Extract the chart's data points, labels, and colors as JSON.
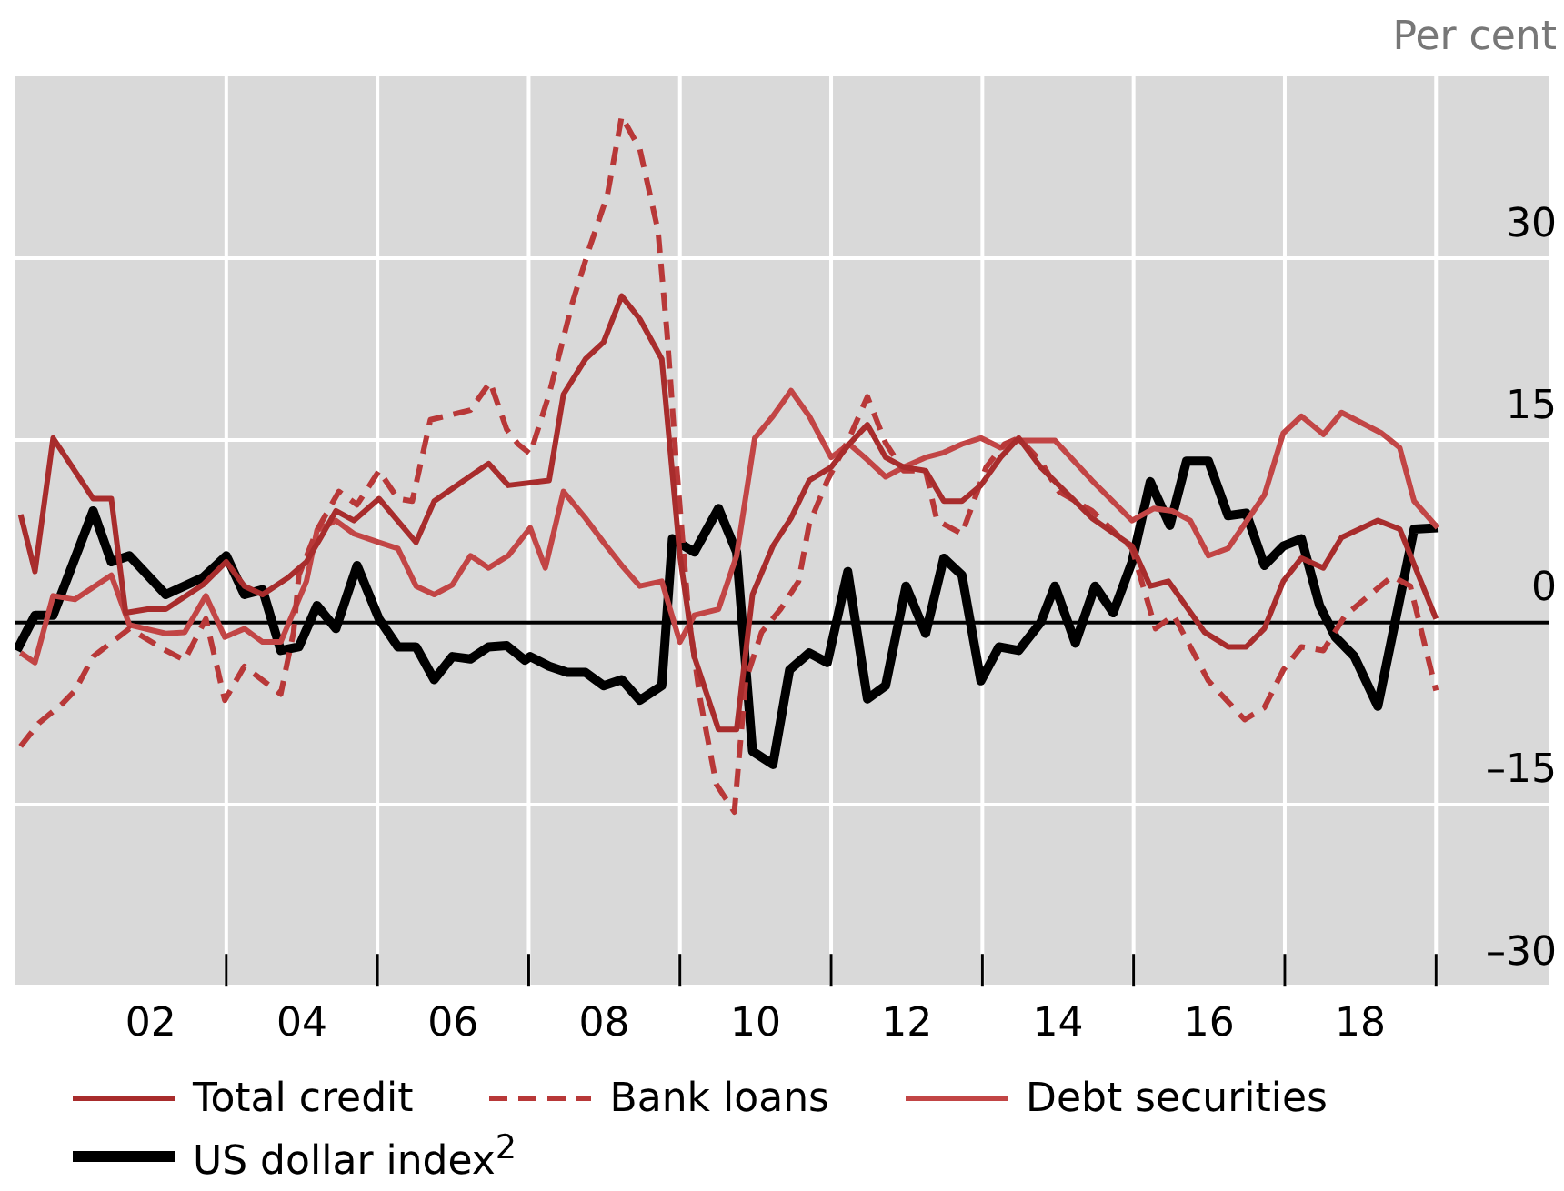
{
  "chart_data": {
    "type": "line",
    "ylabel": "Per cent",
    "xlim": [
      2000.2,
      2020.5
    ],
    "ylim": [
      -30,
      45
    ],
    "xticks": [
      {
        "value": 2002,
        "label": "02"
      },
      {
        "value": 2003,
        "label": null
      },
      {
        "value": 2004,
        "label": "04"
      },
      {
        "value": 2005,
        "label": null
      },
      {
        "value": 2006,
        "label": "06"
      },
      {
        "value": 2007,
        "label": null
      },
      {
        "value": 2008,
        "label": "08"
      },
      {
        "value": 2009,
        "label": null
      },
      {
        "value": 2010,
        "label": "10"
      },
      {
        "value": 2011,
        "label": null
      },
      {
        "value": 2012,
        "label": "12"
      },
      {
        "value": 2013,
        "label": null
      },
      {
        "value": 2014,
        "label": "14"
      },
      {
        "value": 2015,
        "label": null
      },
      {
        "value": 2016,
        "label": "16"
      },
      {
        "value": 2017,
        "label": null
      },
      {
        "value": 2018,
        "label": "18"
      },
      {
        "value": 2019,
        "label": null
      }
    ],
    "yticks": [
      {
        "value": -30,
        "label": "–30"
      },
      {
        "value": -15,
        "label": "–15"
      },
      0,
      15,
      30
    ],
    "grid": true,
    "legend": "bottom",
    "ref_lines": [
      {
        "axis": "y",
        "value": 0,
        "color": "#000000"
      }
    ],
    "series": [
      {
        "name": "Total credit",
        "color": "#a82c2c",
        "line_style": "solid",
        "x": [
          2000.28,
          2000.47,
          2000.71,
          2001.24,
          2001.48,
          2001.67,
          2001.96,
          2002.2,
          2002.69,
          2003.0,
          2003.24,
          2003.48,
          2003.82,
          2004.06,
          2004.25,
          2004.45,
          2004.69,
          2005.02,
          2005.51,
          2005.75,
          2006.47,
          2006.73,
          2007.27,
          2007.46,
          2007.75,
          2007.99,
          2008.23,
          2008.47,
          2008.76,
          2009.0,
          2009.19,
          2009.51,
          2009.75,
          2009.96,
          2010.23,
          2010.47,
          2010.71,
          2011.0,
          2011.24,
          2011.48,
          2011.72,
          2011.96,
          2012.25,
          2012.49,
          2012.73,
          2012.98,
          2013.24,
          2013.48,
          2013.77,
          2014.45,
          2014.98,
          2015.22,
          2015.46,
          2015.94,
          2016.25,
          2016.49,
          2016.73,
          2016.98,
          2017.22,
          2017.51,
          2017.75,
          2018.23,
          2018.52,
          2019.0
        ],
        "values": [
          8.9,
          4.2,
          15.2,
          10.2,
          10.2,
          0.8,
          1.1,
          1.1,
          3.1,
          5,
          3,
          2.3,
          3.7,
          5,
          7,
          9.2,
          8.4,
          10.2,
          6.6,
          10,
          13.1,
          11.3,
          11.7,
          18.8,
          21.7,
          23.1,
          26.9,
          25,
          21.7,
          5.5,
          -2.8,
          -8.8,
          -8.8,
          2.3,
          6.3,
          8.6,
          11.7,
          12.8,
          14.7,
          16.3,
          13.6,
          12.8,
          12.5,
          10,
          10,
          11.3,
          13.6,
          15.2,
          12.8,
          8.6,
          6.3,
          3,
          3.4,
          -0.8,
          -2,
          -2,
          -0.5,
          3.4,
          5.3,
          4.5,
          7,
          8.4,
          7.7,
          0.3
        ]
      },
      {
        "name": "Bank loans",
        "color": "#b83838",
        "line_style": "dashed",
        "x": [
          2000.28,
          2000.52,
          2000.83,
          2001.0,
          2001.24,
          2001.72,
          2002.2,
          2002.45,
          2002.73,
          2002.98,
          2003.24,
          2003.72,
          2003.89,
          2003.96,
          2004.2,
          2004.49,
          2004.73,
          2005.02,
          2005.27,
          2005.46,
          2005.7,
          2006.23,
          2006.49,
          2006.71,
          2006.86,
          2007.02,
          2007.27,
          2007.58,
          2007.8,
          2008.04,
          2008.23,
          2008.47,
          2008.71,
          2008.83,
          2008.95,
          2009.12,
          2009.27,
          2009.48,
          2009.72,
          2009.87,
          2010.08,
          2010.33,
          2010.57,
          2010.71,
          2010.95,
          2011.24,
          2011.48,
          2011.72,
          2011.96,
          2012.25,
          2012.4,
          2012.73,
          2013.05,
          2013.29,
          2013.48,
          2013.77,
          2014.01,
          2014.45,
          2014.98,
          2015.29,
          2015.53,
          2015.99,
          2016.47,
          2016.73,
          2016.98,
          2017.22,
          2017.51,
          2017.8,
          2018.42,
          2018.66,
          2019.0
        ],
        "values": [
          -10.2,
          -8.3,
          -6.7,
          -5.6,
          -2.8,
          -0.5,
          -2.3,
          -3.1,
          0.3,
          -6.4,
          -3.6,
          -5.9,
          -0.8,
          3.9,
          7.6,
          10.8,
          9.7,
          12.5,
          10.2,
          10,
          16.7,
          17.5,
          19.8,
          15.9,
          14.7,
          13.9,
          18.8,
          26.4,
          30.8,
          35.2,
          41.7,
          39,
          32.3,
          23.8,
          13.3,
          0.3,
          -6.4,
          -13.3,
          -15.6,
          -4.8,
          -0.8,
          1.1,
          3.4,
          8.1,
          11.7,
          15.2,
          18.6,
          14.8,
          12.5,
          12.5,
          8.4,
          7.3,
          12.8,
          14.7,
          15.2,
          13.3,
          10.8,
          9.2,
          6.1,
          -0.5,
          0.6,
          -4.8,
          -8,
          -7,
          -3.9,
          -2,
          -2.3,
          0.6,
          3.8,
          3,
          -5.6
        ]
      },
      {
        "name": "Debt securities",
        "color": "#c24545",
        "line_style": "solid",
        "x": [
          2000.28,
          2000.47,
          2000.71,
          2001.0,
          2001.48,
          2001.72,
          2002.2,
          2002.45,
          2002.73,
          2002.98,
          2003.24,
          2003.48,
          2003.72,
          2004.06,
          2004.2,
          2004.45,
          2004.69,
          2005.02,
          2005.27,
          2005.51,
          2005.75,
          2005.99,
          2006.23,
          2006.47,
          2006.73,
          2007.02,
          2007.22,
          2007.46,
          2007.75,
          2007.99,
          2008.23,
          2008.47,
          2008.76,
          2009.0,
          2009.19,
          2009.51,
          2009.75,
          2009.99,
          2010.23,
          2010.47,
          2010.71,
          2011.0,
          2011.24,
          2011.48,
          2011.72,
          2011.96,
          2012.25,
          2012.49,
          2012.73,
          2012.98,
          2013.24,
          2013.48,
          2013.96,
          2014.45,
          2014.98,
          2015.27,
          2015.51,
          2015.75,
          2015.99,
          2016.25,
          2016.73,
          2016.98,
          2017.22,
          2017.51,
          2017.75,
          2018.28,
          2018.52,
          2018.71,
          2019.02
        ],
        "values": [
          -2.5,
          -3.3,
          2.2,
          1.9,
          3.9,
          -0.2,
          -0.9,
          -0.8,
          2.2,
          -1.2,
          -0.5,
          -1.6,
          -1.6,
          3.4,
          7.6,
          8.4,
          7.3,
          6.6,
          6.1,
          3,
          2.3,
          3.1,
          5.5,
          4.5,
          5.5,
          7.8,
          4.5,
          10.8,
          8.6,
          6.6,
          4.7,
          3,
          3.4,
          -1.6,
          0.6,
          1.1,
          5.5,
          15.2,
          17,
          19.1,
          17,
          13.6,
          14.7,
          13.4,
          12,
          12.8,
          13.6,
          14,
          14.7,
          15.2,
          14.4,
          15,
          15,
          11.7,
          8.4,
          9.4,
          9.2,
          8.4,
          5.5,
          6.1,
          10.5,
          15.6,
          17,
          15.5,
          17.3,
          15.6,
          14.4,
          10,
          7.8
        ]
      },
      {
        "name": "US dollar index$^{2}$",
        "color": "#000000",
        "line_style": "solid",
        "x": [
          2000.23,
          2000.47,
          2000.71,
          2001.24,
          2001.48,
          2001.72,
          2002.2,
          2002.69,
          2003.0,
          2003.24,
          2003.48,
          2003.72,
          2003.96,
          2004.2,
          2004.45,
          2004.73,
          2005.02,
          2005.27,
          2005.51,
          2005.75,
          2005.99,
          2006.23,
          2006.47,
          2006.71,
          2006.95,
          2007.02,
          2007.27,
          2007.51,
          2007.75,
          2007.99,
          2008.23,
          2008.47,
          2008.76,
          2008.9,
          2009.19,
          2009.51,
          2009.75,
          2009.96,
          2010.23,
          2010.45,
          2010.71,
          2010.95,
          2011.22,
          2011.48,
          2011.72,
          2011.99,
          2012.25,
          2012.49,
          2012.73,
          2012.98,
          2013.22,
          2013.48,
          2013.77,
          2013.96,
          2014.23,
          2014.49,
          2014.73,
          2014.98,
          2015.22,
          2015.48,
          2015.7,
          2015.99,
          2016.25,
          2016.49,
          2016.73,
          2016.98,
          2017.22,
          2017.46,
          2017.67,
          2017.92,
          2018.23,
          2018.71,
          2019.02
        ],
        "values": [
          -2.3,
          0.6,
          0.6,
          9.2,
          5,
          5.5,
          2.3,
          3.7,
          5.5,
          2.3,
          2.7,
          -2.3,
          -2,
          1.4,
          -0.5,
          4.7,
          0.3,
          -2,
          -2,
          -4.7,
          -2.8,
          -3,
          -2,
          -1.9,
          -3.1,
          -2.8,
          -3.6,
          -4.1,
          -4.1,
          -5.2,
          -4.7,
          -6.4,
          -5.2,
          6.9,
          5.8,
          9.4,
          5.8,
          -10.6,
          -11.7,
          -3.9,
          -2.5,
          -3.3,
          4.2,
          -6.3,
          -5.2,
          3,
          -0.9,
          5.3,
          3.9,
          -4.8,
          -2,
          -2.3,
          0,
          3,
          -1.7,
          3,
          0.8,
          5,
          11.6,
          8,
          13.3,
          13.3,
          8.8,
          9,
          4.7,
          6.3,
          6.9,
          1.4,
          -1.2,
          -2.8,
          -6.9,
          7.7,
          7.8
        ]
      }
    ]
  }
}
